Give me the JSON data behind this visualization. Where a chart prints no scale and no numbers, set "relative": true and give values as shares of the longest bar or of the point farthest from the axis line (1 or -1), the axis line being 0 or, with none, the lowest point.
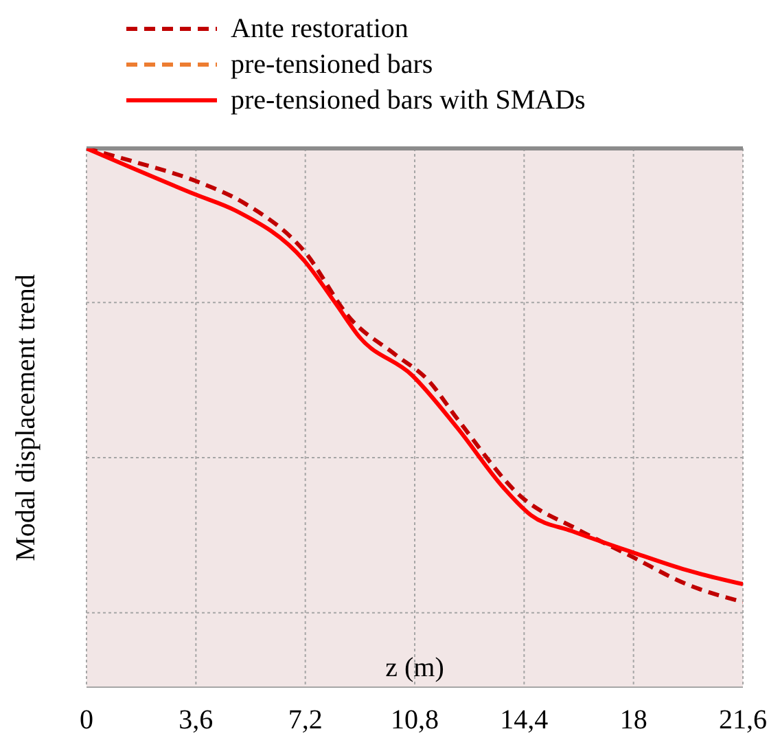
{
  "chart_data": {
    "type": "line",
    "relative": true,
    "xlabel": "z (m)",
    "ylabel": "Modal displacement trend",
    "xlim": [
      0,
      21.6
    ],
    "xticks": [
      0,
      {
        "value": 3.6,
        "label": "3,6"
      },
      {
        "value": 7.2,
        "label": "7,2"
      },
      {
        "value": 10.8,
        "label": "10,8"
      },
      {
        "value": 14.4,
        "label": "14,4"
      },
      18,
      {
        "value": 21.6,
        "label": "21,6"
      }
    ],
    "grid": true,
    "legend": "top",
    "series": [
      {
        "name": "Ante restoration",
        "color": "#c00000",
        "line_style": "dashed",
        "x": [
          0,
          1.6,
          3.6,
          5.2,
          7.17,
          8.68,
          10.17,
          11.24,
          12.21,
          14.32,
          16.13,
          17.94,
          19.75,
          21.6
        ],
        "values": [
          0,
          -0.03,
          -0.072,
          -0.121,
          -0.227,
          -0.375,
          -0.455,
          -0.511,
          -0.597,
          -0.769,
          -0.839,
          -0.9,
          -0.961,
          -1
        ]
      },
      {
        "name": "pre-tensioned bars",
        "color": "#ed7d31",
        "line_style": "dashed"
      },
      {
        "name": "pre-tensioned bars with SMADs",
        "color": "#ff0000",
        "line_style": "solid",
        "x": [
          0,
          3.6,
          4.9,
          7.17,
          8.22,
          8.97,
          10.71,
          12.21,
          13.72,
          14.63,
          15.98,
          17.94,
          19.75,
          21.6
        ],
        "values": [
          0,
          -0.102,
          -0.137,
          -0.248,
          -0.344,
          -0.415,
          -0.5,
          -0.617,
          -0.748,
          -0.809,
          -0.844,
          -0.89,
          -0.93,
          -0.961
        ]
      }
    ]
  }
}
